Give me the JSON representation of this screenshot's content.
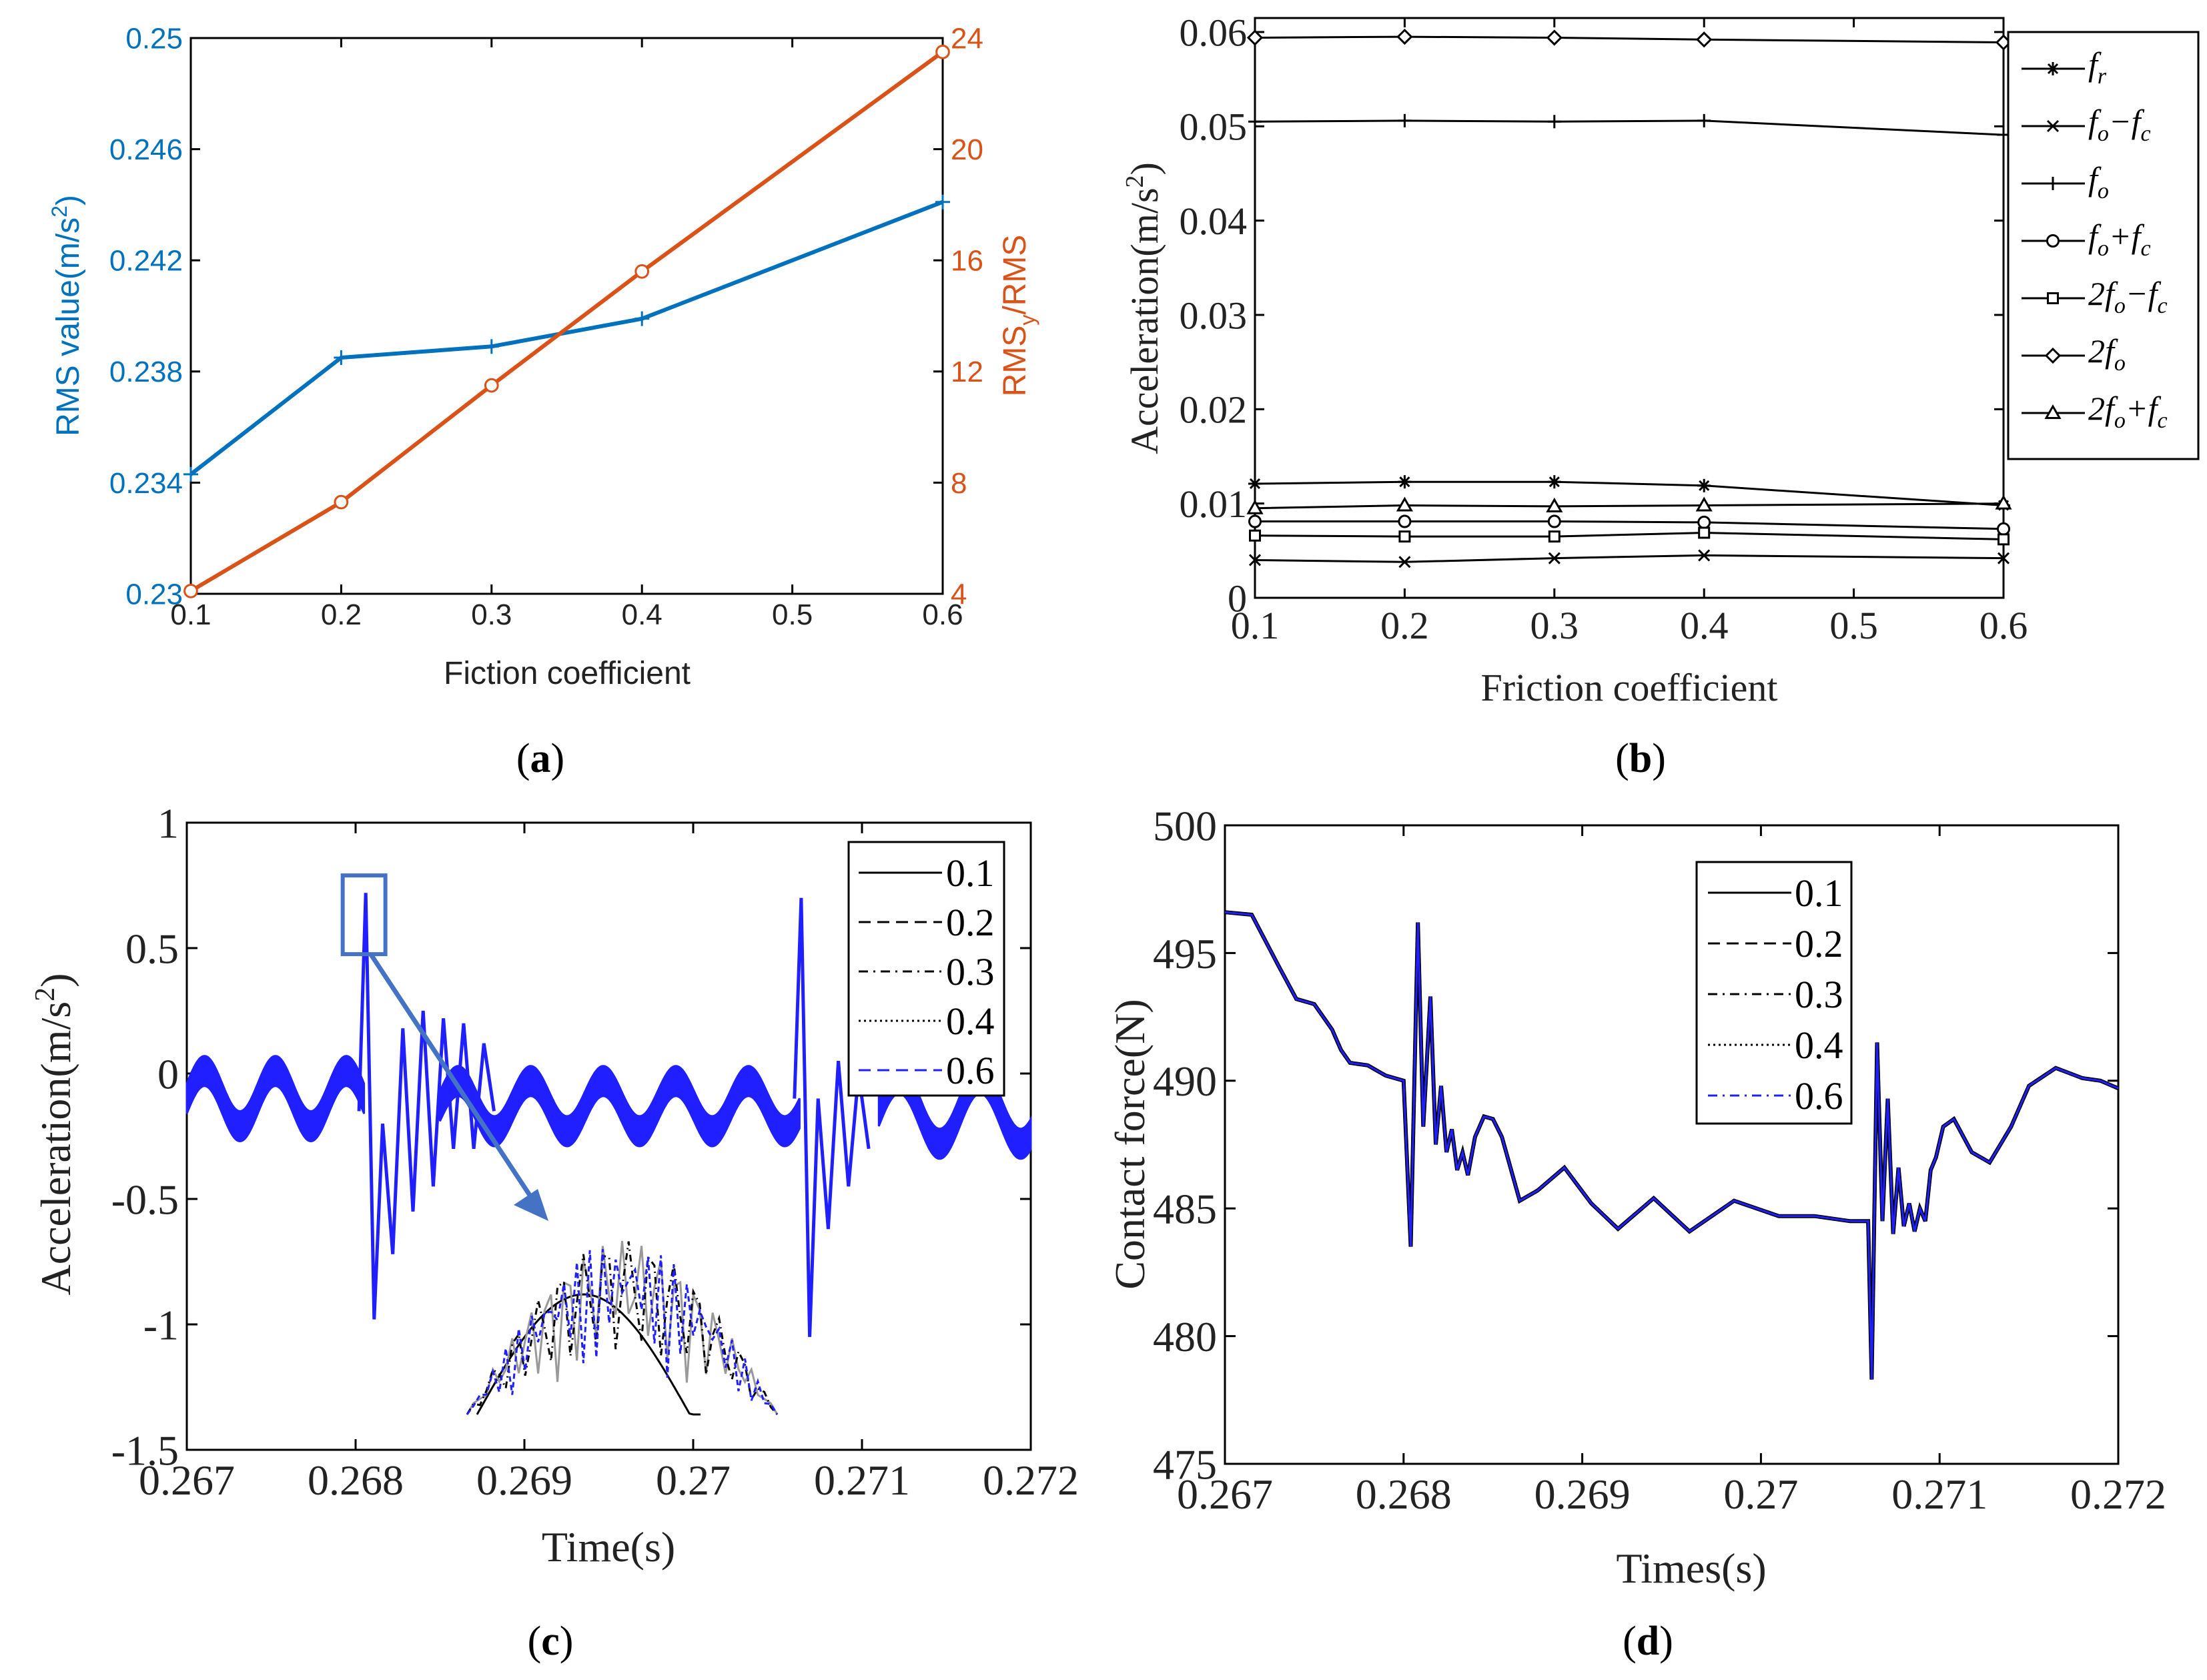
{
  "colors": {
    "blue_a": "#0072BD",
    "orange_a": "#D95319",
    "blue_cd": "#1f1fff",
    "black": "#000000"
  },
  "chart_data": [
    {
      "id": "a",
      "type": "line",
      "panel_label": "a",
      "xlabel": "Fiction coefficient",
      "ylabel_left": "RMS value(m/s",
      "ylabel_left_sup": "2",
      "ylabel_left_end": ")",
      "ylabel_right": "RMS",
      "ylabel_right_sub": "y",
      "ylabel_right_end": "/RMS",
      "x_ticks": [
        "0.1",
        "0.2",
        "0.3",
        "0.4",
        "0.5",
        "0.6"
      ],
      "y_left_ticks": [
        "0.23",
        "0.234",
        "0.238",
        "0.242",
        "0.246",
        "0.25"
      ],
      "y_right_ticks": [
        "4",
        "8",
        "12",
        "16",
        "20",
        "24"
      ],
      "xlim": [
        0.1,
        0.6
      ],
      "ylim_left": [
        0.23,
        0.25
      ],
      "ylim_right": [
        4,
        24
      ],
      "series": [
        {
          "name": "RMS value",
          "axis": "left",
          "marker": "plus",
          "x": [
            0.1,
            0.2,
            0.3,
            0.4,
            0.6
          ],
          "y": [
            0.2343,
            0.2385,
            0.2389,
            0.2399,
            0.2441
          ]
        },
        {
          "name": "RMSy/RMS",
          "axis": "right",
          "marker": "circle",
          "x": [
            0.1,
            0.2,
            0.3,
            0.4,
            0.6
          ],
          "y": [
            4.1,
            7.3,
            11.5,
            15.6,
            23.5
          ]
        }
      ]
    },
    {
      "id": "b",
      "type": "line",
      "panel_label": "b",
      "xlabel": "Friction coefficient",
      "ylabel": "Acceleration(m/s",
      "ylabel_sup": "2",
      "ylabel_end": ")",
      "x_ticks": [
        "0.1",
        "0.2",
        "0.3",
        "0.4",
        "0.5",
        "0.6"
      ],
      "y_ticks": [
        "0",
        "0.01",
        "0.02",
        "0.03",
        "0.04",
        "0.05",
        "0.06"
      ],
      "xlim": [
        0.1,
        0.6
      ],
      "ylim": [
        0,
        0.06
      ],
      "series": [
        {
          "name": "fr",
          "legend_main": "f",
          "legend_sub": "r",
          "legend_rest": [],
          "marker": "asterisk",
          "x": [
            0.1,
            0.2,
            0.3,
            0.4,
            0.6
          ],
          "y": [
            0.0121,
            0.0123,
            0.0123,
            0.0119,
            0.0098
          ]
        },
        {
          "name": "fo-fc",
          "legend_main": "f",
          "legend_sub": "o",
          "legend_rest": [
            [
              "−f",
              "c"
            ]
          ],
          "marker": "x",
          "x": [
            0.1,
            0.2,
            0.3,
            0.4,
            0.6
          ],
          "y": [
            0.004,
            0.0038,
            0.0042,
            0.0045,
            0.0042
          ]
        },
        {
          "name": "fo",
          "legend_main": "f",
          "legend_sub": "o",
          "legend_rest": [],
          "marker": "plus",
          "x": [
            0.1,
            0.2,
            0.3,
            0.4,
            0.6
          ],
          "y": [
            0.0505,
            0.0506,
            0.0505,
            0.0506,
            0.0491
          ]
        },
        {
          "name": "fo+fc",
          "legend_main": "f",
          "legend_sub": "o",
          "legend_rest": [
            [
              "+f",
              "c"
            ]
          ],
          "marker": "circle",
          "x": [
            0.1,
            0.2,
            0.3,
            0.4,
            0.6
          ],
          "y": [
            0.0081,
            0.0081,
            0.0081,
            0.008,
            0.0073
          ]
        },
        {
          "name": "2fo-fc",
          "legend_main": "2f",
          "legend_sub": "o",
          "legend_rest": [
            [
              "−f",
              "c"
            ]
          ],
          "marker": "square",
          "x": [
            0.1,
            0.2,
            0.3,
            0.4,
            0.6
          ],
          "y": [
            0.0066,
            0.0065,
            0.0065,
            0.0069,
            0.0062
          ]
        },
        {
          "name": "2fo",
          "legend_main": "2f",
          "legend_sub": "o",
          "legend_rest": [],
          "marker": "diamond",
          "x": [
            0.1,
            0.2,
            0.3,
            0.4,
            0.6
          ],
          "y": [
            0.0594,
            0.0595,
            0.0594,
            0.0592,
            0.0589
          ]
        },
        {
          "name": "2fo+fc",
          "legend_main": "2f",
          "legend_sub": "o",
          "legend_rest": [
            [
              "+f",
              "c"
            ]
          ],
          "marker": "triangle",
          "x": [
            0.1,
            0.2,
            0.3,
            0.4,
            0.6
          ],
          "y": [
            0.0095,
            0.0098,
            0.0097,
            0.0098,
            0.01
          ]
        }
      ]
    },
    {
      "id": "c",
      "type": "line",
      "panel_label": "c",
      "xlabel": "Time(s)",
      "ylabel": "Acceleration(m/s",
      "ylabel_sup": "2",
      "ylabel_end": ")",
      "x_ticks": [
        "0.267",
        "0.268",
        "0.269",
        "0.27",
        "0.271",
        "0.272"
      ],
      "y_ticks": [
        "-1.5",
        "-1",
        "-0.5",
        "0",
        "0.5",
        "1"
      ],
      "xlim": [
        0.267,
        0.272
      ],
      "ylim": [
        -1.5,
        1
      ],
      "legend": [
        {
          "label": "0.1",
          "dash": "solid"
        },
        {
          "label": "0.2",
          "dash": "dash"
        },
        {
          "label": "0.3",
          "dash": "dashdot"
        },
        {
          "label": "0.4",
          "dash": "dot"
        },
        {
          "label": "0.6",
          "dash": "dash-blue"
        }
      ],
      "signal": {
        "baseline_segments": [
          {
            "t_start": 0.267,
            "t_end": 0.26805,
            "offset": -0.1,
            "amplitude": 0.11,
            "period": 0.00042
          },
          {
            "t_start": 0.2685,
            "t_end": 0.27063,
            "offset": -0.13,
            "amplitude": 0.1,
            "period": 0.00043
          },
          {
            "t_start": 0.2711,
            "t_end": 0.272,
            "offset": -0.15,
            "amplitude": 0.13,
            "period": 0.00048
          }
        ],
        "band_halfwidth": 0.06,
        "impacts": [
          {
            "t": [
              0.26802,
              0.26806,
              0.26811,
              0.26816,
              0.26822,
              0.26828,
              0.26834,
              0.2684,
              0.26846,
              0.26852,
              0.26858,
              0.26864,
              0.2687,
              0.26876,
              0.26882
            ],
            "y": [
              -0.15,
              0.72,
              -0.98,
              -0.2,
              -0.72,
              0.18,
              -0.55,
              0.25,
              -0.45,
              0.22,
              -0.3,
              0.2,
              -0.3,
              0.12,
              -0.15
            ]
          },
          {
            "t": [
              0.2706,
              0.27064,
              0.27069,
              0.27074,
              0.2708,
              0.27086,
              0.27092,
              0.27098,
              0.27104
            ],
            "y": [
              -0.1,
              0.7,
              -1.05,
              -0.1,
              -0.62,
              0.05,
              -0.45,
              0.0,
              -0.3
            ]
          }
        ]
      },
      "inset": {
        "box_time": 0.26805,
        "box_value": 0.63
      }
    },
    {
      "id": "d",
      "type": "line",
      "panel_label": "d",
      "xlabel": "Times(s)",
      "ylabel": "Contact force(N)",
      "x_ticks": [
        "0.267",
        "0.268",
        "0.269",
        "0.27",
        "0.271",
        "0.272"
      ],
      "y_ticks": [
        "475",
        "480",
        "485",
        "490",
        "495",
        "500"
      ],
      "xlim": [
        0.267,
        0.272
      ],
      "ylim": [
        475,
        500
      ],
      "legend": [
        {
          "label": "0.1",
          "dash": "solid"
        },
        {
          "label": "0.2",
          "dash": "dash"
        },
        {
          "label": "0.3",
          "dash": "dashdot"
        },
        {
          "label": "0.4",
          "dash": "dot"
        },
        {
          "label": "0.6",
          "dash": "dashdot-blue"
        }
      ],
      "series": [
        {
          "name": "contact force",
          "x": [
            0.267,
            0.26715,
            0.2673,
            0.2674,
            0.2675,
            0.2676,
            0.26765,
            0.2677,
            0.2678,
            0.26785,
            0.2679,
            0.268,
            0.268,
            0.26804,
            0.26808,
            0.26811,
            0.26815,
            0.26818,
            0.26821,
            0.26824,
            0.26827,
            0.2683,
            0.26833,
            0.26836,
            0.2684,
            0.26845,
            0.2685,
            0.26855,
            0.26865,
            0.26875,
            0.2689,
            0.26905,
            0.2692,
            0.2694,
            0.2696,
            0.26985,
            0.2701,
            0.2703,
            0.2705,
            0.2706,
            0.27062,
            0.27065,
            0.27068,
            0.27071,
            0.27074,
            0.27077,
            0.2708,
            0.27083,
            0.27086,
            0.27089,
            0.27092,
            0.27095,
            0.27098,
            0.27102,
            0.27108,
            0.27118,
            0.27128,
            0.2714,
            0.2715,
            0.27165,
            0.2718,
            0.2719,
            0.272
          ],
          "y": [
            496.6,
            496.5,
            494.5,
            493.2,
            493,
            492,
            491.2,
            490.7,
            490.6,
            490.4,
            490.2,
            490,
            490,
            483.5,
            496.2,
            488.2,
            493.3,
            487.5,
            489.8,
            487.2,
            488.1,
            486.5,
            487.2,
            486.3,
            487.8,
            488.6,
            488.5,
            487.8,
            485.3,
            485.7,
            486.6,
            485.2,
            484.2,
            485.4,
            484.1,
            485.3,
            484.7,
            484.7,
            484.5,
            484.5,
            478.3,
            491.5,
            484.5,
            489.3,
            484,
            486.6,
            484.3,
            485.2,
            484.1,
            485,
            484.5,
            486.5,
            487,
            488.2,
            488.5,
            487.2,
            486.8,
            488.2,
            489.8,
            490.5,
            490.1,
            490,
            489.7
          ]
        }
      ]
    }
  ]
}
